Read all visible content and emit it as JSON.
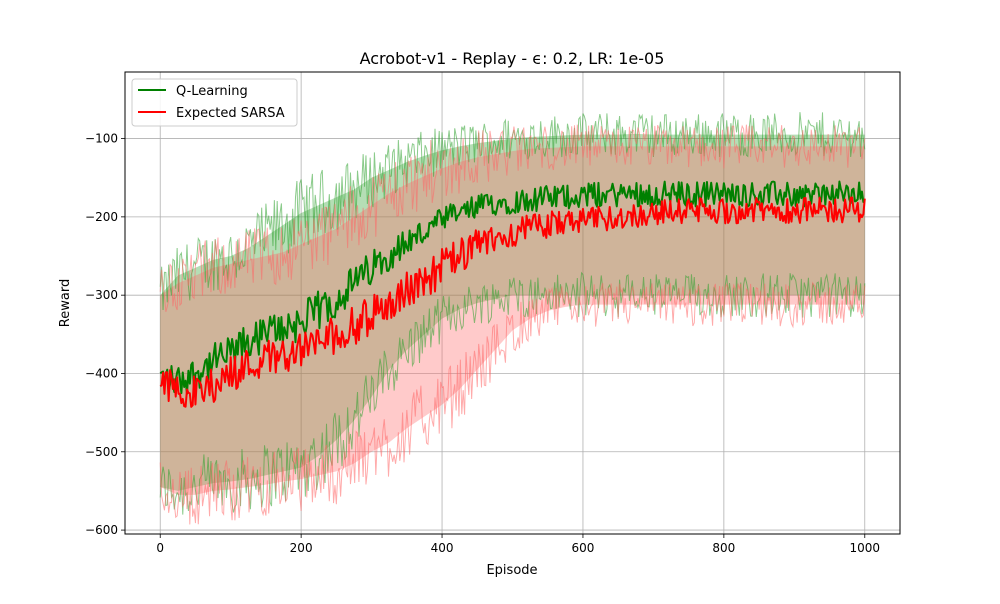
{
  "chart_data": {
    "type": "line",
    "title": "Acrobot-v1 - Replay - ϵ: 0.2, LR: 1e-05",
    "xlabel": "Episode",
    "ylabel": "Reward",
    "xlim": [
      -50,
      1050
    ],
    "ylim": [
      -605,
      -15
    ],
    "xticks": [
      0,
      200,
      400,
      600,
      800,
      1000
    ],
    "yticks": [
      -600,
      -500,
      -400,
      -300,
      -200,
      -100
    ],
    "xtick_labels": [
      "0",
      "200",
      "400",
      "600",
      "800",
      "1000"
    ],
    "ytick_labels": [
      "−600",
      "−500",
      "−400",
      "−300",
      "−200",
      "−100"
    ],
    "grid": true,
    "legend_position": "top-left",
    "series": [
      {
        "name": "Q-Learning",
        "color": "#008000",
        "band_color": "#2ca02c",
        "x": [
          0,
          25,
          50,
          75,
          100,
          125,
          150,
          175,
          200,
          225,
          250,
          275,
          300,
          325,
          350,
          375,
          400,
          425,
          450,
          475,
          500,
          525,
          550,
          575,
          600,
          625,
          650,
          675,
          700,
          725,
          750,
          775,
          800,
          825,
          850,
          875,
          900,
          925,
          950,
          975,
          1000
        ],
        "mean": [
          -405,
          -410,
          -400,
          -385,
          -375,
          -360,
          -350,
          -340,
          -335,
          -320,
          -305,
          -285,
          -265,
          -248,
          -232,
          -220,
          -205,
          -195,
          -188,
          -182,
          -180,
          -178,
          -176,
          -174,
          -172,
          -172,
          -171,
          -170,
          -171,
          -170,
          -172,
          -170,
          -171,
          -170,
          -172,
          -171,
          -172,
          -171,
          -170,
          -172,
          -172
        ],
        "upper": [
          -300,
          -275,
          -265,
          -255,
          -250,
          -240,
          -225,
          -210,
          -195,
          -185,
          -175,
          -165,
          -150,
          -140,
          -130,
          -122,
          -115,
          -110,
          -106,
          -103,
          -100,
          -98,
          -97,
          -96,
          -95,
          -95,
          -95,
          -94,
          -95,
          -95,
          -95,
          -95,
          -95,
          -95,
          -95,
          -95,
          -95,
          -95,
          -95,
          -95,
          -95
        ],
        "lower": [
          -545,
          -550,
          -545,
          -540,
          -538,
          -535,
          -530,
          -525,
          -520,
          -505,
          -485,
          -460,
          -430,
          -395,
          -370,
          -350,
          -330,
          -318,
          -310,
          -305,
          -300,
          -300,
          -300,
          -300,
          -300,
          -300,
          -300,
          -300,
          -300,
          -300,
          -300,
          -300,
          -300,
          -300,
          -300,
          -300,
          -300,
          -300,
          -300,
          -300,
          -300
        ]
      },
      {
        "name": "Expected SARSA",
        "color": "#ff0000",
        "band_color": "#ff6666",
        "x": [
          0,
          25,
          50,
          75,
          100,
          125,
          150,
          175,
          200,
          225,
          250,
          275,
          300,
          325,
          350,
          375,
          400,
          425,
          450,
          475,
          500,
          525,
          550,
          575,
          600,
          625,
          650,
          675,
          700,
          725,
          750,
          775,
          800,
          825,
          850,
          875,
          900,
          925,
          950,
          975,
          1000
        ],
        "mean": [
          -410,
          -420,
          -425,
          -415,
          -400,
          -390,
          -380,
          -375,
          -370,
          -360,
          -350,
          -340,
          -325,
          -310,
          -295,
          -280,
          -265,
          -250,
          -238,
          -228,
          -220,
          -214,
          -210,
          -207,
          -205,
          -203,
          -200,
          -198,
          -195,
          -193,
          -192,
          -192,
          -193,
          -192,
          -192,
          -191,
          -192,
          -191,
          -192,
          -191,
          -190
        ],
        "upper": [
          -300,
          -285,
          -275,
          -265,
          -260,
          -255,
          -250,
          -245,
          -235,
          -225,
          -215,
          -200,
          -185,
          -170,
          -158,
          -148,
          -138,
          -130,
          -124,
          -120,
          -116,
          -113,
          -112,
          -111,
          -110,
          -110,
          -110,
          -110,
          -110,
          -110,
          -110,
          -110,
          -110,
          -110,
          -110,
          -110,
          -110,
          -110,
          -110,
          -110,
          -110
        ],
        "lower": [
          -545,
          -555,
          -555,
          -550,
          -548,
          -545,
          -542,
          -538,
          -535,
          -530,
          -525,
          -515,
          -500,
          -488,
          -470,
          -455,
          -440,
          -420,
          -395,
          -370,
          -345,
          -330,
          -320,
          -315,
          -312,
          -312,
          -312,
          -312,
          -312,
          -312,
          -312,
          -312,
          -312,
          -312,
          -312,
          -312,
          -312,
          -312,
          -312,
          -312,
          -312
        ]
      }
    ]
  }
}
